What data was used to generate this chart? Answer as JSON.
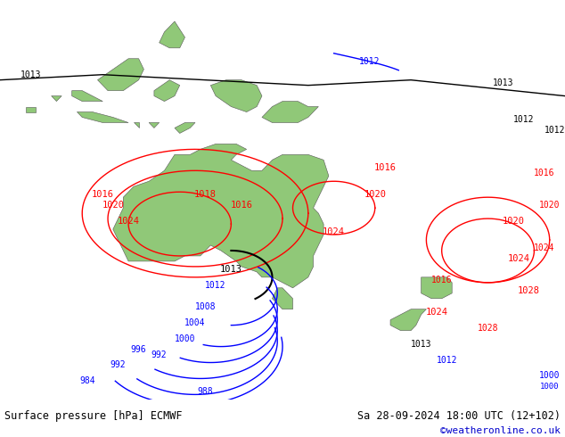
{
  "title_left": "Surface pressure [hPa] ECMWF",
  "title_right": "Sa 28-09-2024 18:00 UTC (12+102)",
  "credit": "©weatheronline.co.uk",
  "credit_color": "#0000cc",
  "bg_color": "#c8d8e8",
  "land_color": "#90c878",
  "ocean_color": "#c8d8e8",
  "text_color": "#000000",
  "isobar_blue_color": "#0000ff",
  "isobar_red_color": "#ff0000",
  "isobar_black_color": "#000000",
  "figsize": [
    6.34,
    4.9
  ],
  "dpi": 100
}
